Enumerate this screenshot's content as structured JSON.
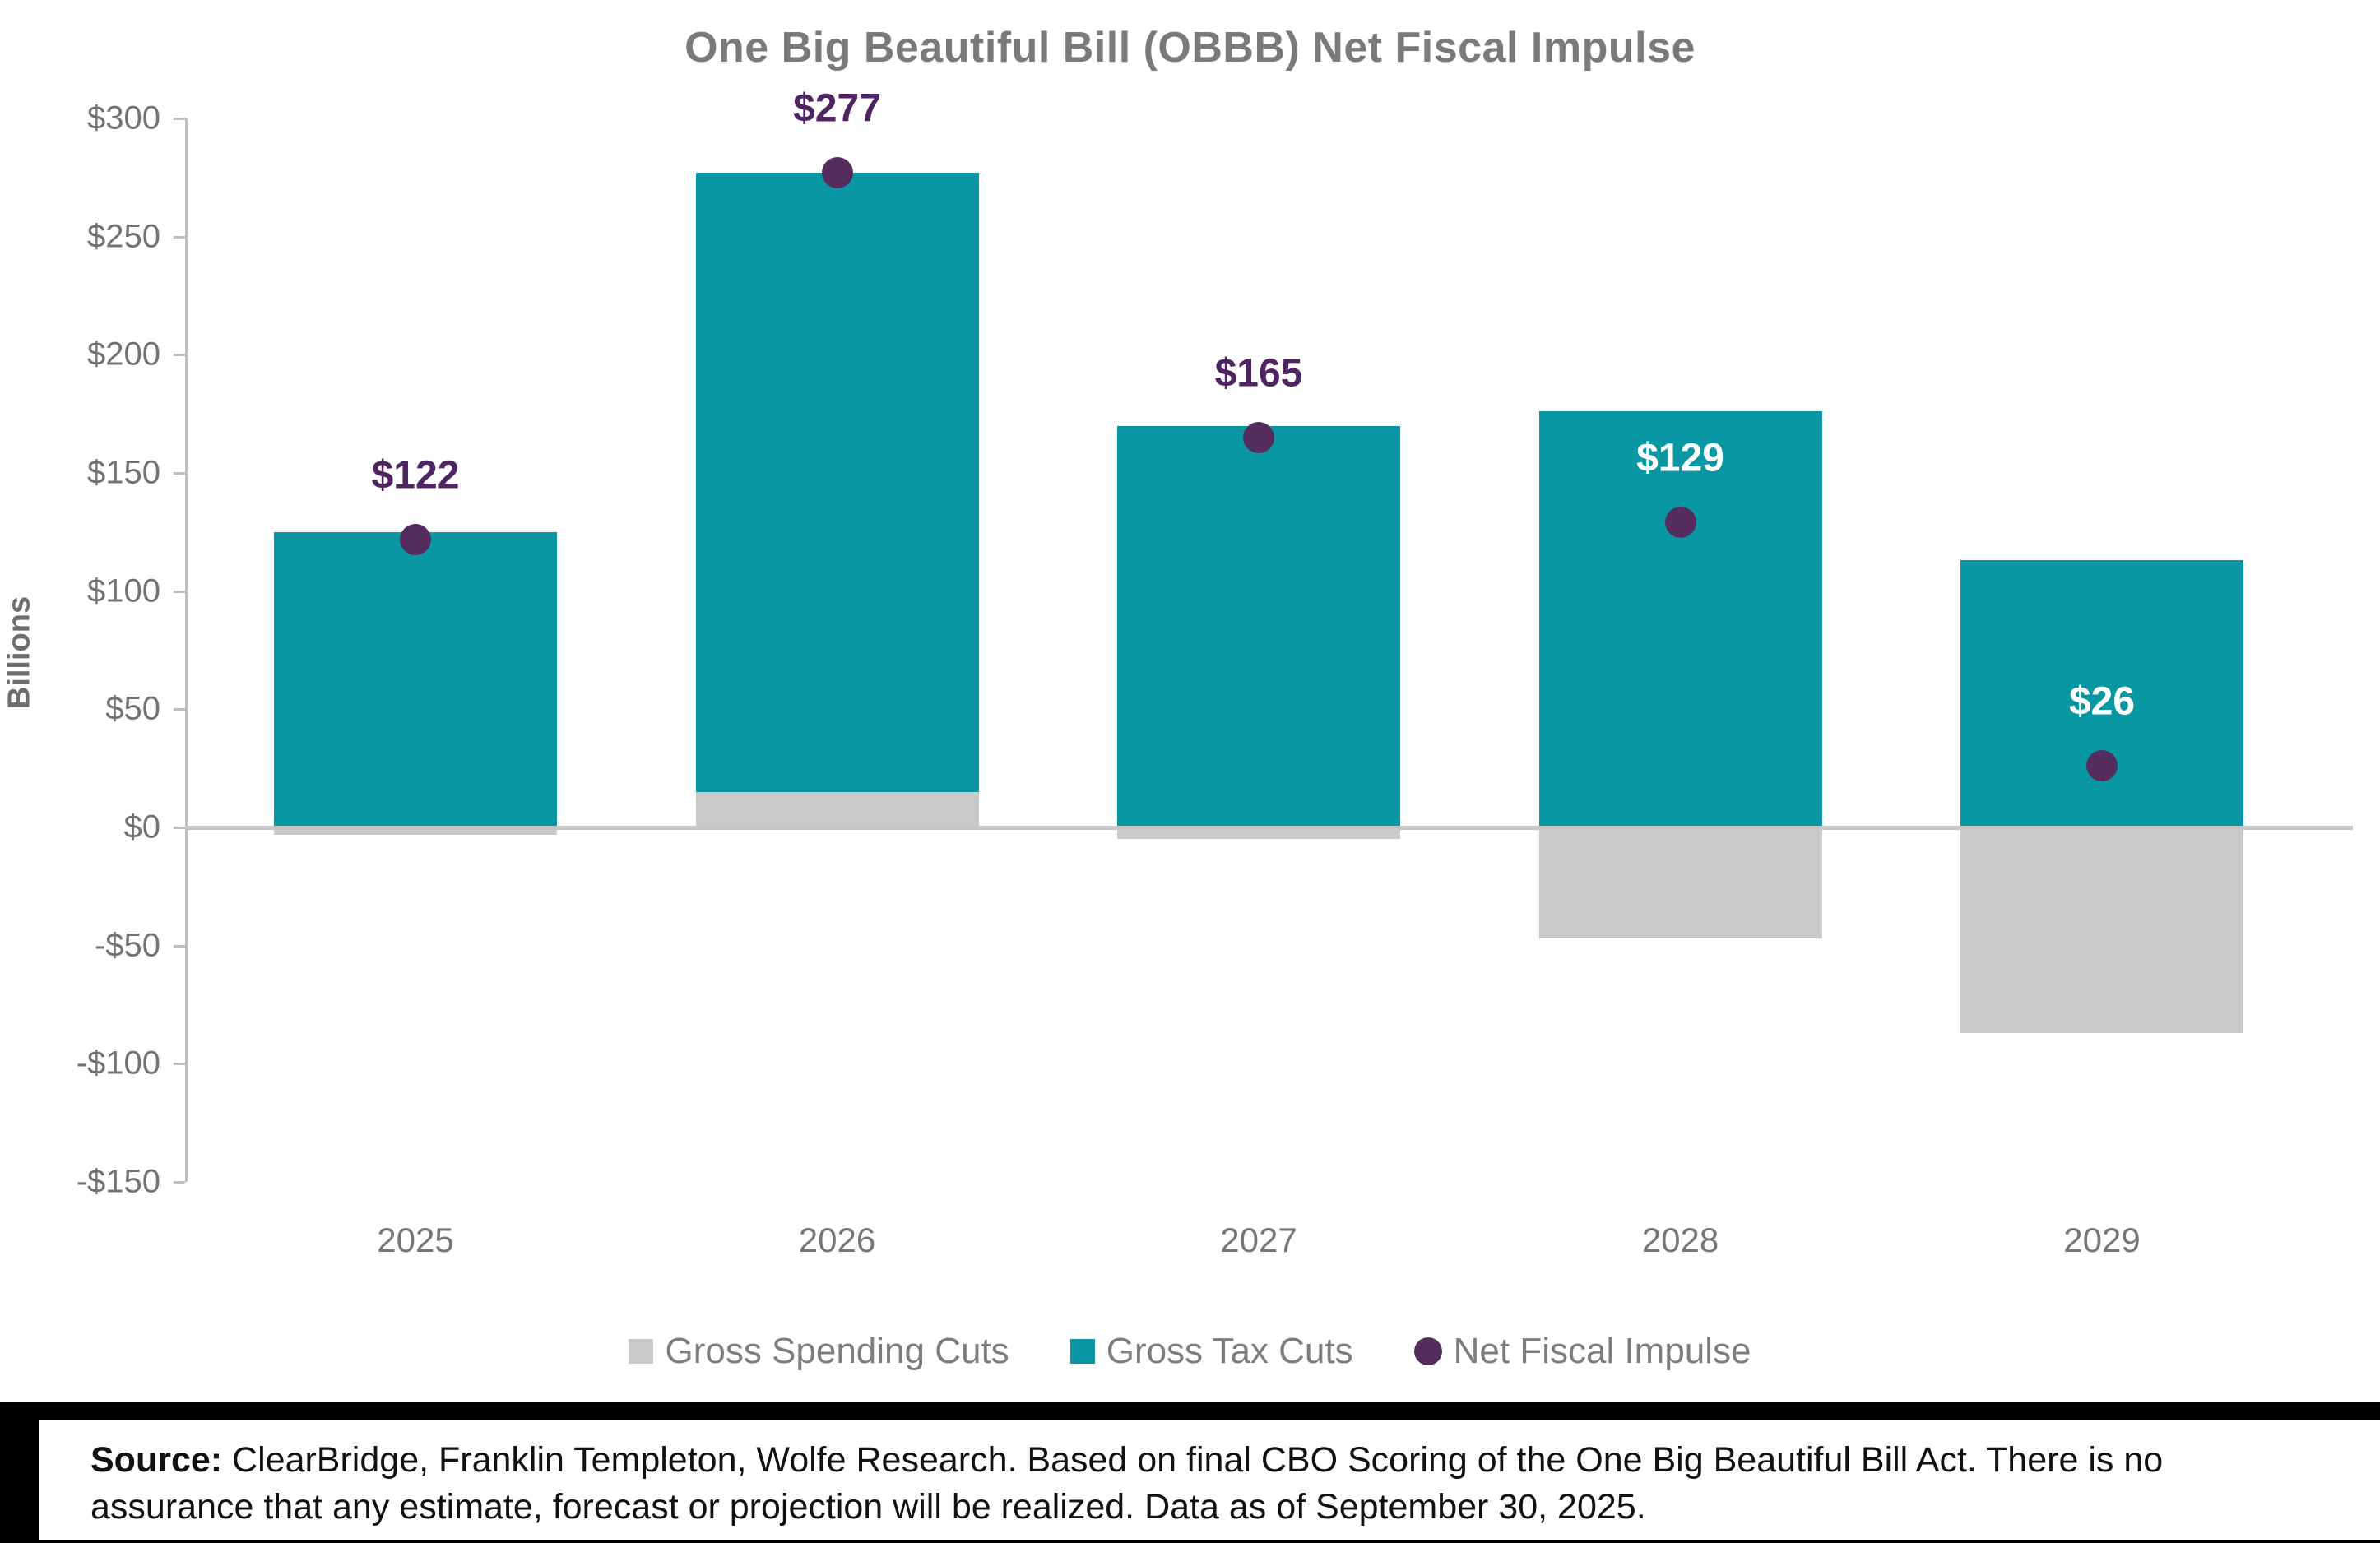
{
  "chart": {
    "title": "One Big Beautiful Bill (OBBB) Net Fiscal Impulse",
    "ylabel": "Billions"
  },
  "chart_data": {
    "type": "bar",
    "title": "One Big Beautiful Bill (OBBB) Net Fiscal Impulse",
    "xlabel": "",
    "ylabel": "Billions",
    "categories": [
      "2025",
      "2026",
      "2027",
      "2028",
      "2029"
    ],
    "stacked": true,
    "grid": false,
    "legend_position": "bottom",
    "ylim": [
      -150,
      300
    ],
    "yticks": {
      "values": [
        300,
        250,
        200,
        150,
        100,
        50,
        0,
        -50,
        -100,
        -150
      ],
      "labels": [
        "$300",
        "$250",
        "$200",
        "$150",
        "$100",
        "$50",
        "$0",
        "-$50",
        "-$100",
        "-$150"
      ]
    },
    "series": [
      {
        "name": "Gross Spending Cuts",
        "type": "bar",
        "color": "#c9c9c9",
        "values": [
          -3,
          15,
          -5,
          -47,
          -87
        ]
      },
      {
        "name": "Gross Tax Cuts",
        "type": "bar",
        "color": "#0998a3",
        "values": [
          125,
          262,
          170,
          176,
          113
        ]
      },
      {
        "name": "Net Fiscal Impulse",
        "type": "point",
        "color": "#542c5e",
        "values": [
          122,
          277,
          165,
          129,
          26
        ]
      }
    ],
    "point_labels": {
      "texts": [
        "$122",
        "$277",
        "$165",
        "$129",
        "$26"
      ],
      "placements": [
        "above",
        "above",
        "above",
        "inside",
        "inside"
      ],
      "above_color": "#4e2463",
      "inside_color": "#ffffff"
    }
  },
  "legend": {
    "items": [
      {
        "label": "Gross Spending Cuts",
        "swatch": "square",
        "color": "#c9c9c9"
      },
      {
        "label": "Gross Tax Cuts",
        "swatch": "square",
        "color": "#0998a3"
      },
      {
        "label": "Net Fiscal Impulse",
        "swatch": "circle",
        "color": "#542c5e"
      }
    ]
  },
  "source": {
    "prefix": "Source:",
    "text": " ClearBridge, Franklin Templeton, Wolfe Research. Based on final CBO Scoring of the One Big Beautiful Bill Act. There is no assurance that any estimate, forecast or projection will be realized. Data as of September 30, 2025."
  },
  "colors": {
    "teal": "#0998a3",
    "bar_gray": "#c9c9c9",
    "purple": "#542c5e",
    "title_gray": "#7a7a7a",
    "axis_text_gray": "#737373",
    "axis_line_gray": "#bfbfbf",
    "zero_line_gray": "#c6c6c6"
  }
}
